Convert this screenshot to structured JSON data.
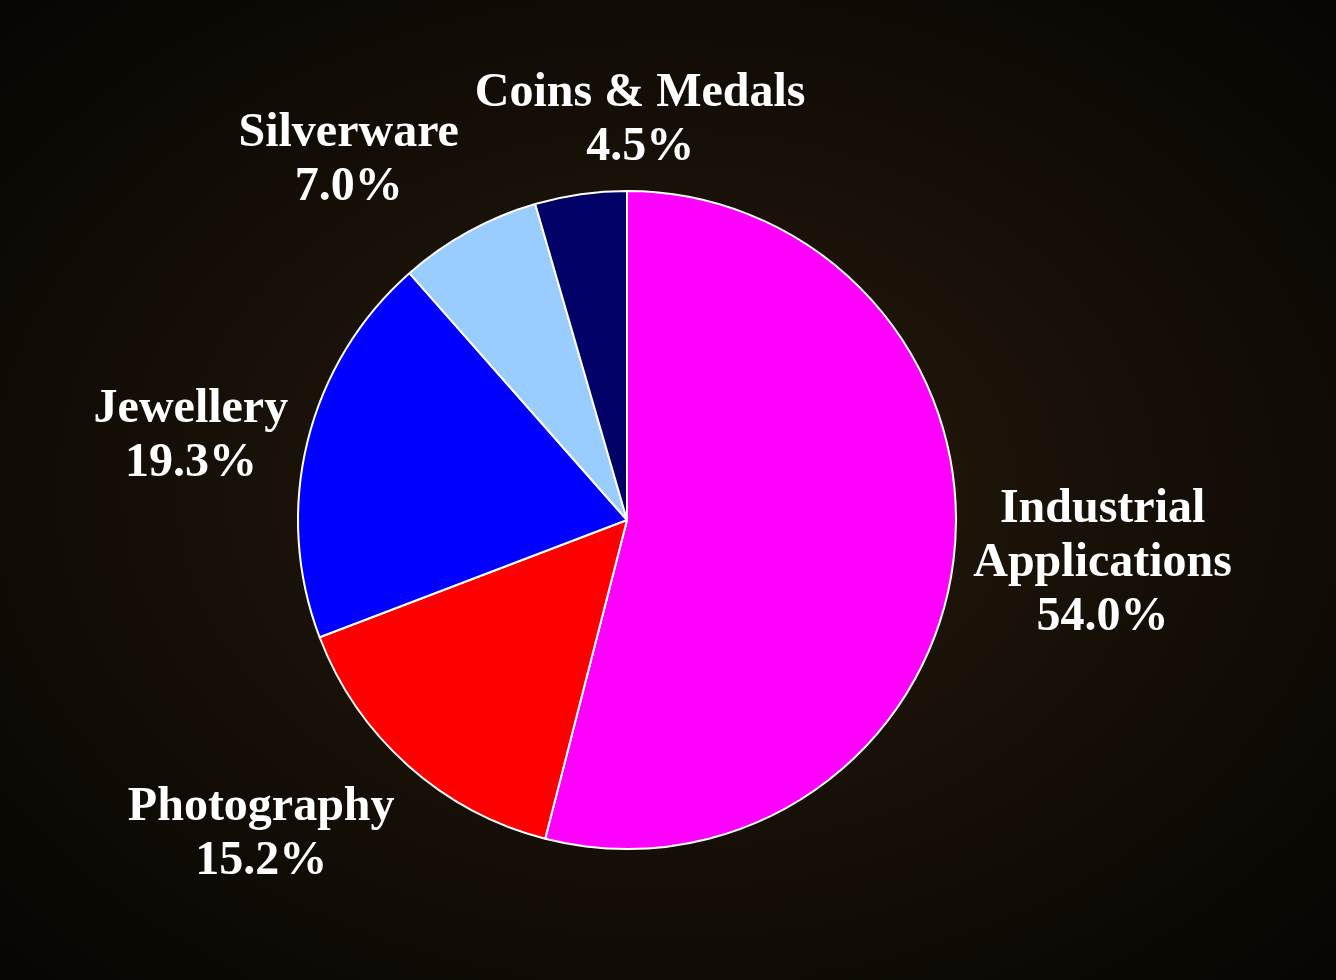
{
  "chart_data": {
    "type": "pie",
    "categories": [
      "Industrial Applications",
      "Photography",
      "Jewellery",
      "Silverware",
      "Coins & Medals"
    ],
    "values": [
      54.0,
      15.2,
      19.3,
      7.0,
      4.5
    ],
    "value_labels": [
      "54.0%",
      "15.2%",
      "19.3%",
      "7.0%",
      "4.5%"
    ],
    "colors": [
      "#ff00ff",
      "#ff0000",
      "#0000ff",
      "#99ccff",
      "#000066"
    ],
    "data_labels": true
  }
}
